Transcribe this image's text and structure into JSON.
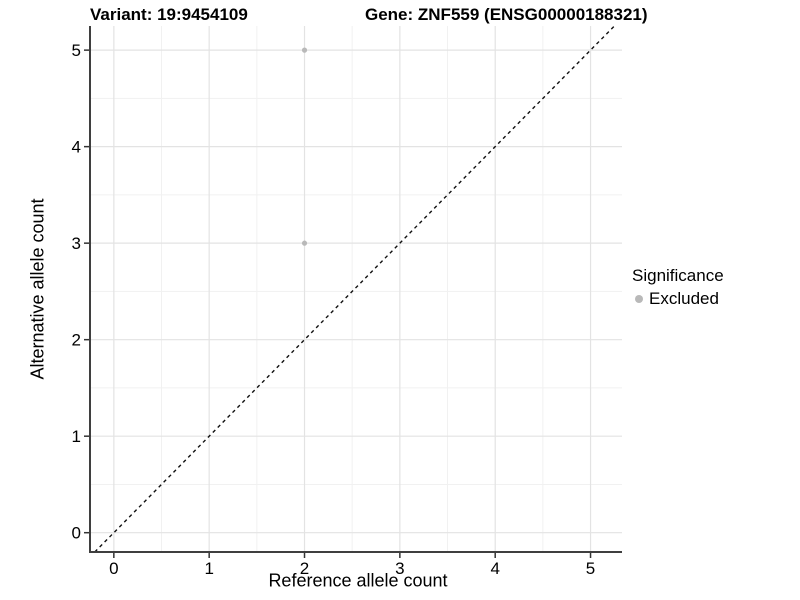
{
  "chart_data": {
    "type": "scatter",
    "variant_title": "Variant: 19:9454109",
    "gene_title": "Gene: ZNF559 (ENSG00000188321)",
    "xlabel": "Reference allele count",
    "ylabel": "Alternative allele count",
    "x_ticks": [
      0,
      1,
      2,
      3,
      4,
      5
    ],
    "y_ticks": [
      0,
      1,
      2,
      3,
      4,
      5
    ],
    "x_minor_ticks": [
      0.5,
      1.5,
      2.5,
      3.5,
      4.5
    ],
    "y_minor_ticks": [
      0.5,
      1.5,
      2.5,
      3.5,
      4.5
    ],
    "xlim": [
      -0.25,
      5.33
    ],
    "ylim": [
      -0.2,
      5.25
    ],
    "grid": "major and minor, light grey on white panel",
    "legend": {
      "position": "right",
      "title": "Significance",
      "entries": [
        {
          "label": "Excluded",
          "color": "#B9B9B9"
        }
      ]
    },
    "series": [
      {
        "name": "Excluded",
        "color": "#B9B9B9",
        "points": [
          {
            "x": 2,
            "y": 5
          },
          {
            "x": 2,
            "y": 3
          }
        ]
      }
    ],
    "reference_line": {
      "slope": 1,
      "intercept": 0,
      "style": "dashed",
      "color": "#111111"
    }
  },
  "colors": {
    "background": "#FFFFFF",
    "grid_major": "#E3E3E3",
    "grid_minor": "#F1F1F1",
    "axis_line": "#3F3F3F",
    "tick_mark": "#333333",
    "text": "#000000",
    "point": "#B9B9B9"
  }
}
